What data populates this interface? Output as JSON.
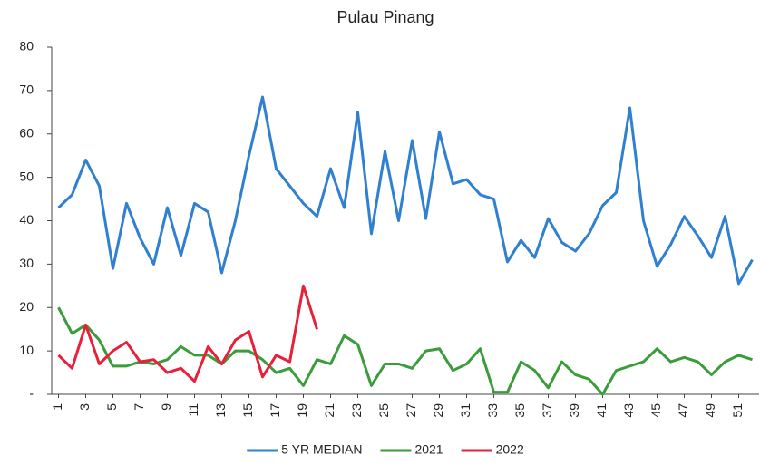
{
  "chart_data": {
    "type": "line",
    "title": "Pulau Pinang",
    "categories": [
      1,
      null,
      3,
      null,
      5,
      null,
      7,
      null,
      9,
      null,
      11,
      null,
      13,
      null,
      15,
      null,
      17,
      null,
      19,
      null,
      21,
      null,
      23,
      null,
      25,
      null,
      27,
      null,
      29,
      null,
      31,
      null,
      33,
      null,
      35,
      null,
      37,
      null,
      39,
      null,
      41,
      null,
      43,
      null,
      45,
      null,
      47,
      null,
      49,
      null,
      51,
      null
    ],
    "series": [
      {
        "name": "5 YR MEDIAN",
        "color": "#2f80d1",
        "values": [
          43,
          46,
          54,
          48,
          29,
          44,
          36,
          30,
          43,
          32,
          44,
          42,
          28,
          40,
          55,
          68.5,
          52,
          48,
          44,
          41,
          52,
          43,
          65,
          37,
          56,
          40,
          58.5,
          40.5,
          60.5,
          48.5,
          49.5,
          46,
          45,
          30.5,
          35.5,
          31.5,
          40.5,
          35,
          33,
          37,
          43.5,
          46.5,
          66,
          40,
          29.5,
          34.5,
          41,
          36.5,
          31.5,
          41,
          25.5,
          31
        ]
      },
      {
        "name": "2021",
        "color": "#3a9c3a",
        "values": [
          20,
          14,
          16,
          12.5,
          6.5,
          6.5,
          7.5,
          7,
          8,
          11,
          9,
          9,
          7,
          10,
          10,
          8,
          5,
          6,
          2,
          8,
          7,
          13.5,
          11.5,
          2,
          7,
          7,
          6,
          10,
          10.5,
          5.5,
          7,
          10.5,
          0.5,
          0.5,
          7.5,
          5.5,
          1.5,
          7.5,
          4.5,
          3.5,
          0,
          5.5,
          6.5,
          7.5,
          10.5,
          7.5,
          8.5,
          7.5,
          4.5,
          7.5,
          9,
          8
        ]
      },
      {
        "name": "2022",
        "color": "#e8213a",
        "values": [
          9,
          6,
          16,
          7,
          10,
          12,
          7.5,
          8,
          5,
          6,
          3,
          11,
          7,
          12.5,
          14.5,
          4,
          9,
          7.5,
          25,
          15,
          null,
          null,
          null,
          null,
          null,
          null,
          null,
          null,
          null,
          null,
          null,
          null,
          null,
          null,
          null,
          null,
          null,
          null,
          null,
          null,
          null,
          null,
          null,
          null,
          null,
          null,
          null,
          null,
          null,
          null,
          null,
          null
        ]
      }
    ],
    "ylim": [
      0,
      80
    ],
    "yticks": [
      {
        "value": 0,
        "label": "-"
      },
      10,
      20,
      30,
      40,
      50,
      60,
      70,
      80
    ],
    "grid": false,
    "legend": "bottom"
  }
}
